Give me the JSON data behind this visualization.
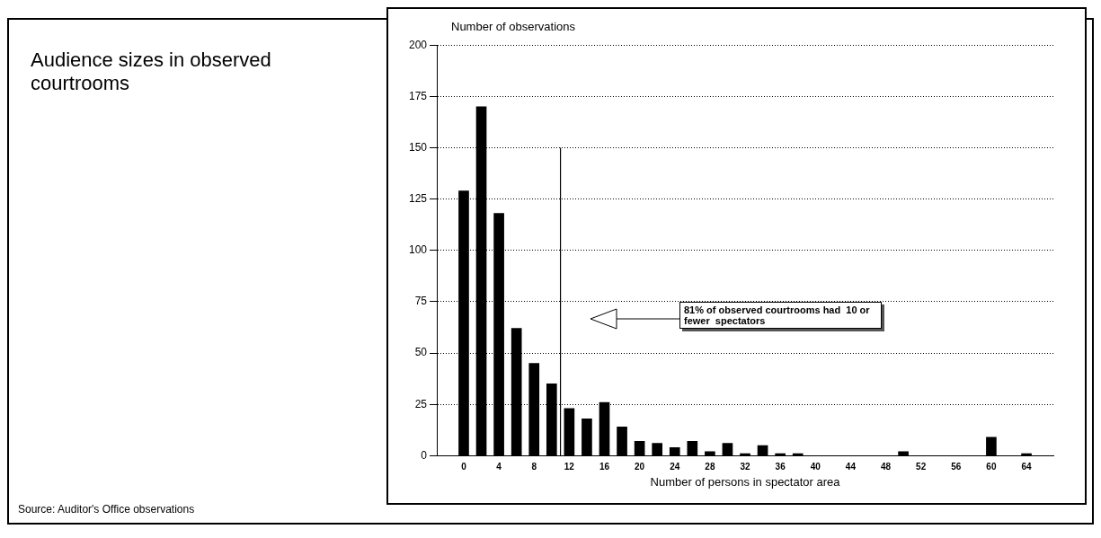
{
  "chart_data": {
    "type": "bar",
    "title": "Audience sizes in observed courtrooms",
    "xlabel": "Number of persons in spectator area",
    "ylabel": "Number of observations",
    "x": [
      0,
      2,
      4,
      6,
      8,
      10,
      12,
      14,
      16,
      18,
      20,
      22,
      24,
      26,
      28,
      30,
      32,
      34,
      36,
      38,
      40,
      42,
      44,
      46,
      48,
      50,
      52,
      54,
      56,
      58,
      60,
      62,
      64
    ],
    "values": [
      129,
      170,
      118,
      62,
      45,
      35,
      23,
      18,
      26,
      14,
      7,
      6,
      4,
      7,
      2,
      6,
      1,
      5,
      1,
      1,
      0,
      0,
      0,
      0,
      0,
      2,
      0,
      0,
      0,
      0,
      9,
      0,
      1
    ],
    "color": "#000000",
    "xlim": [
      -1,
      65
    ],
    "xticks": [
      0,
      4,
      8,
      12,
      16,
      20,
      24,
      28,
      32,
      36,
      40,
      44,
      48,
      52,
      56,
      60,
      64
    ],
    "ylim": [
      0,
      200
    ],
    "yticks": [
      0,
      25,
      50,
      75,
      100,
      125,
      150,
      175,
      200
    ],
    "grid": "y",
    "legend": false,
    "ref_lines": [
      {
        "axis": "x",
        "value": 11,
        "color": "#000000"
      }
    ],
    "annotations": [
      "81% of observed courtrooms had  10 or fewer  spectators",
      "Source: Auditor's Office observations"
    ]
  }
}
